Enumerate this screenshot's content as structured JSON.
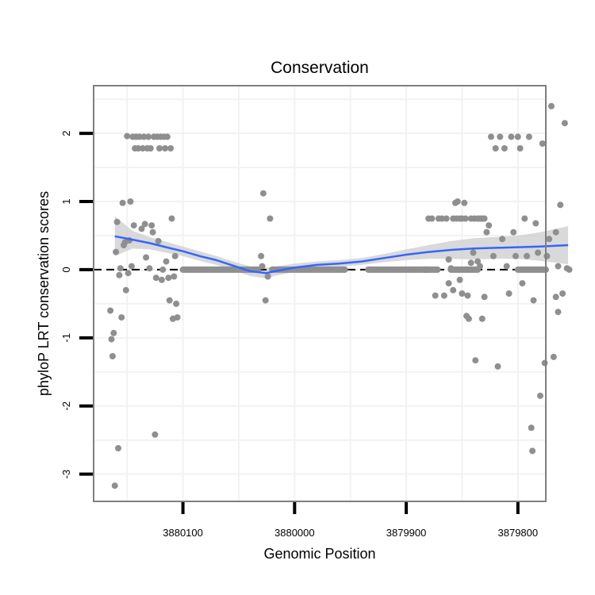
{
  "chart_data": {
    "type": "scatter",
    "title": "Conservation",
    "xlabel": "Genomic Position",
    "ylabel": "phyloP LRT conservation scores",
    "x_reversed": true,
    "xlim": [
      3880180,
      3879775
    ],
    "ylim": [
      -3.4,
      2.7
    ],
    "x_ticks": [
      3880100,
      3880000,
      3879900,
      3879800
    ],
    "x_tick_labels": [
      "3880100",
      "3880000",
      "3879900",
      "3879800"
    ],
    "y_ticks": [
      -3,
      -2,
      -1,
      0,
      1,
      2
    ],
    "y_tick_labels": [
      "-3",
      "-2",
      "-1",
      "0",
      "1",
      "2"
    ],
    "grid": true,
    "reference_line": {
      "y": 0,
      "style": "dashed",
      "color": "#000000"
    },
    "colors": {
      "points": "#8f8f8f",
      "smooth": "#3366ff",
      "band": "#cccccc",
      "frame": "#7f7f7f",
      "grid": "#f2f2f2"
    },
    "series": [
      {
        "name": "phyloP scores",
        "kind": "points",
        "points": [
          [
            3880165,
            -0.6
          ],
          [
            3880164,
            -1.02
          ],
          [
            3880163,
            -1.27
          ],
          [
            3880162,
            -0.93
          ],
          [
            3880161,
            -3.17
          ],
          [
            3880160,
            0.26
          ],
          [
            3880159,
            0.7
          ],
          [
            3880158,
            -2.62
          ],
          [
            3880157,
            -0.08
          ],
          [
            3880156,
            0.02
          ],
          [
            3880155,
            -0.7
          ],
          [
            3880154,
            0.98
          ],
          [
            3880153,
            0.36
          ],
          [
            3880152,
            0.4
          ],
          [
            3880151,
            -0.3
          ],
          [
            3880150,
            1.96
          ],
          [
            3880149,
            -0.05
          ],
          [
            3880148,
            0.43
          ],
          [
            3880147,
            1.0
          ],
          [
            3880146,
            0.05
          ],
          [
            3880145,
            1.95
          ],
          [
            3880144,
            0.65
          ],
          [
            3880143,
            1.78
          ],
          [
            3880142,
            1.95
          ],
          [
            3880140,
            1.78
          ],
          [
            3880139,
            1.95
          ],
          [
            3880137,
            0.6
          ],
          [
            3880136,
            1.78
          ],
          [
            3880135,
            1.95
          ],
          [
            3880134,
            0.67
          ],
          [
            3880133,
            0.18
          ],
          [
            3880132,
            1.78
          ],
          [
            3880131,
            1.95
          ],
          [
            3880130,
            0.02
          ],
          [
            3880129,
            1.78
          ],
          [
            3880128,
            0.65
          ],
          [
            3880127,
            0.55
          ],
          [
            3880126,
            1.95
          ],
          [
            3880125,
            -2.42
          ],
          [
            3880124,
            -0.12
          ],
          [
            3880123,
            1.95
          ],
          [
            3880122,
            0.42
          ],
          [
            3880121,
            1.78
          ],
          [
            3880120,
            1.95
          ],
          [
            3880119,
            -0.15
          ],
          [
            3880118,
            0.0
          ],
          [
            3880117,
            1.95
          ],
          [
            3880116,
            1.78
          ],
          [
            3880115,
            0.12
          ],
          [
            3880114,
            1.95
          ],
          [
            3880113,
            -0.12
          ],
          [
            3880112,
            -0.45
          ],
          [
            3880111,
            1.78
          ],
          [
            3880110,
            0.75
          ],
          [
            3880109,
            -0.72
          ],
          [
            3880108,
            -0.1
          ],
          [
            3880107,
            0.2
          ],
          [
            3880106,
            -0.5
          ],
          [
            3880105,
            -0.7
          ],
          [
            3880030,
            0.2
          ],
          [
            3880028,
            1.12
          ],
          [
            3880026,
            -0.45
          ],
          [
            3880024,
            -0.1
          ],
          [
            3880022,
            0.75
          ],
          [
            3880029,
            0.05
          ],
          [
            3879880,
            0.75
          ],
          [
            3879877,
            0.75
          ],
          [
            3879874,
            -0.38
          ],
          [
            3879871,
            0.75
          ],
          [
            3879868,
            0.75
          ],
          [
            3879866,
            -0.38
          ],
          [
            3879864,
            0.75
          ],
          [
            3879862,
            -0.2
          ],
          [
            3879858,
            0.75
          ],
          [
            3879855,
            0.75
          ],
          [
            3879852,
            0.75
          ],
          [
            3879850,
            0.75
          ],
          [
            3879847,
            0.75
          ],
          [
            3879845,
            -0.38
          ],
          [
            3879842,
            0.75
          ],
          [
            3879839,
            0.75
          ],
          [
            3879836,
            0.75
          ],
          [
            3879834,
            0.75
          ],
          [
            3879832,
            0.75
          ],
          [
            3879830,
            0.75
          ],
          [
            3879862,
            0.15
          ],
          [
            3879860,
            0.02
          ],
          [
            3879858,
            -0.3
          ],
          [
            3879856,
            0.98
          ],
          [
            3879854,
            1.0
          ],
          [
            3879852,
            -0.15
          ],
          [
            3879850,
            -0.35
          ],
          [
            3879848,
            0.98
          ],
          [
            3879846,
            -0.68
          ],
          [
            3879844,
            -0.72
          ],
          [
            3879842,
            0.1
          ],
          [
            3879840,
            0.25
          ],
          [
            3879838,
            -1.33
          ],
          [
            3879836,
            0.12
          ],
          [
            3879834,
            0.05
          ],
          [
            3879832,
            -0.72
          ],
          [
            3879830,
            -0.4
          ],
          [
            3879828,
            0.55
          ],
          [
            3879826,
            0.65
          ],
          [
            3879824,
            1.95
          ],
          [
            3879822,
            0.2
          ],
          [
            3879820,
            1.78
          ],
          [
            3879818,
            -1.42
          ],
          [
            3879816,
            1.95
          ],
          [
            3879814,
            0.45
          ],
          [
            3879812,
            1.78
          ],
          [
            3879810,
            0.05
          ],
          [
            3879808,
            -0.35
          ],
          [
            3879806,
            1.95
          ],
          [
            3879804,
            0.55
          ],
          [
            3879802,
            0.2
          ],
          [
            3879800,
            1.95
          ],
          [
            3879798,
            1.78
          ],
          [
            3879796,
            -0.2
          ],
          [
            3879794,
            0.75
          ],
          [
            3879792,
            0.2
          ],
          [
            3879790,
            1.95
          ],
          [
            3879788,
            -2.32
          ],
          [
            3879787,
            -2.66
          ],
          [
            3879786,
            -0.45
          ],
          [
            3879784,
            0.68
          ],
          [
            3879782,
            0.25
          ],
          [
            3879780,
            -1.85
          ],
          [
            3879778,
            1.85
          ],
          [
            3879776,
            -1.37
          ],
          [
            3879774,
            0.2
          ],
          [
            3879772,
            0.45
          ],
          [
            3879770,
            2.4
          ],
          [
            3879768,
            -1.28
          ],
          [
            3879766,
            0.55
          ],
          [
            3879764,
            -0.62
          ],
          [
            3879762,
            0.95
          ],
          [
            3879760,
            -0.35
          ],
          [
            3879758,
            2.15
          ],
          [
            3879756,
            0.02
          ],
          [
            3879754,
            0.0
          ],
          [
            3879764,
            0.05
          ],
          [
            3879766,
            -0.4
          ]
        ],
        "zero_runs": [
          [
            3880100,
            3880033
          ],
          [
            3880020,
            3879955
          ],
          [
            3879934,
            3879880
          ],
          [
            3879860,
            3879836
          ],
          [
            3879884,
            3879872
          ],
          [
            3879800,
            3879775
          ]
        ]
      },
      {
        "name": "loess smooth",
        "kind": "line",
        "x": [
          3880161,
          3880145,
          3880130,
          3880115,
          3880100,
          3880085,
          3880070,
          3880055,
          3880040,
          3880025,
          3880020,
          3880000,
          3879980,
          3879960,
          3879940,
          3879920,
          3879900,
          3879880,
          3879860,
          3879840,
          3879820,
          3879800,
          3879780,
          3879755
        ],
        "y": [
          0.49,
          0.44,
          0.39,
          0.33,
          0.27,
          0.2,
          0.14,
          0.06,
          -0.02,
          -0.05,
          -0.03,
          0.03,
          0.07,
          0.09,
          0.12,
          0.17,
          0.22,
          0.26,
          0.29,
          0.31,
          0.32,
          0.33,
          0.34,
          0.36
        ],
        "band_upper": [
          0.78,
          0.57,
          0.48,
          0.41,
          0.34,
          0.27,
          0.2,
          0.12,
          0.05,
          0.03,
          0.04,
          0.09,
          0.12,
          0.14,
          0.17,
          0.23,
          0.3,
          0.36,
          0.42,
          0.46,
          0.48,
          0.5,
          0.55,
          0.64
        ],
        "band_lower": [
          0.2,
          0.31,
          0.3,
          0.25,
          0.2,
          0.13,
          0.07,
          -0.01,
          -0.09,
          -0.13,
          -0.1,
          -0.03,
          0.02,
          0.04,
          0.07,
          0.11,
          0.14,
          0.16,
          0.16,
          0.15,
          0.16,
          0.16,
          0.13,
          0.08
        ]
      }
    ]
  }
}
